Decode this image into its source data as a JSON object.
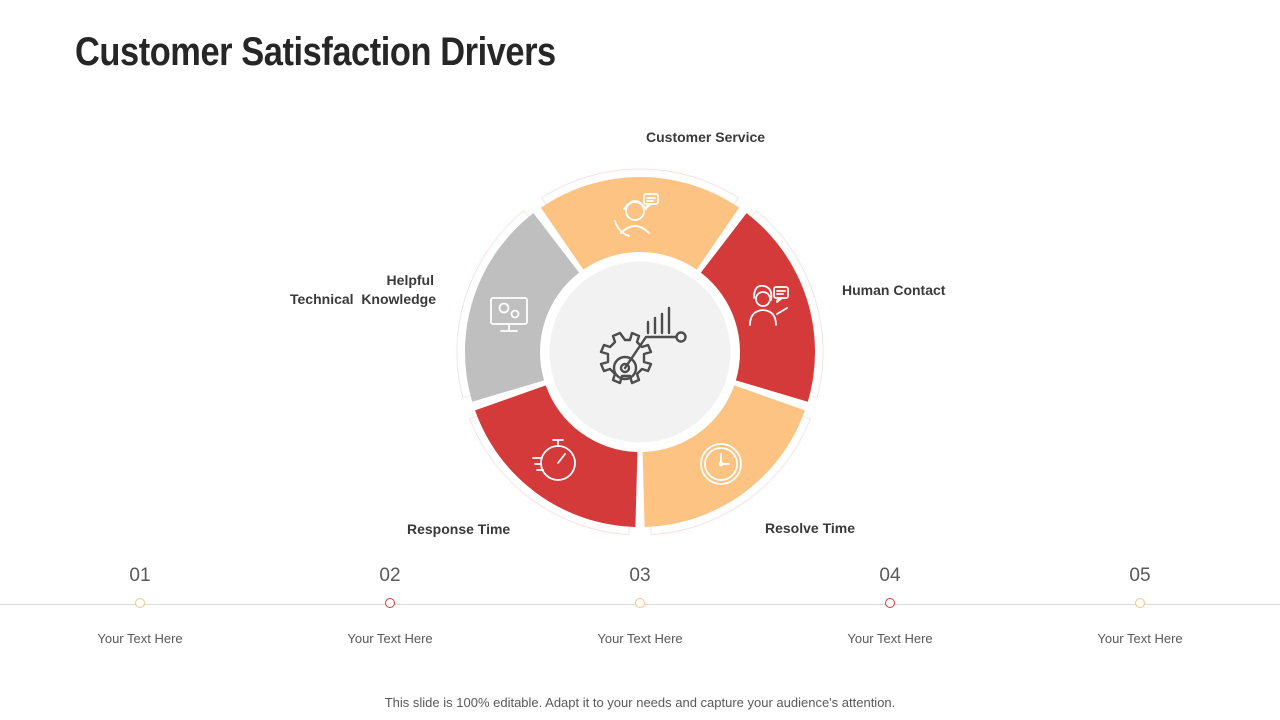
{
  "title": "Customer Satisfaction Drivers",
  "colors": {
    "peach": "#FDC383",
    "red": "#D43A3A",
    "gray": "#BFBFBF",
    "center": "#F2F2F2",
    "icon_dark": "#4D4D4D"
  },
  "segments": [
    {
      "label": "Customer Service",
      "color": "peach",
      "icon": "customer-service-agent-icon"
    },
    {
      "label": "Human Contact",
      "color": "red",
      "icon": "human-contact-icon"
    },
    {
      "label": "Resolve Time",
      "color": "peach",
      "icon": "clock-icon"
    },
    {
      "label": "Response Time",
      "color": "red",
      "icon": "stopwatch-icon"
    },
    {
      "label_line1": "Helpful",
      "label_line2": "Technical  Knowledge",
      "color": "gray",
      "icon": "computer-settings-icon"
    }
  ],
  "center_icon": "gear-chart-icon",
  "steps": [
    {
      "num": "01",
      "text": "Your Text Here",
      "color": "peach"
    },
    {
      "num": "02",
      "text": "Your Text Here",
      "color": "red"
    },
    {
      "num": "03",
      "text": "Your Text Here",
      "color": "peach"
    },
    {
      "num": "04",
      "text": "Your Text Here",
      "color": "red"
    },
    {
      "num": "05",
      "text": "Your Text Here",
      "color": "peach"
    }
  ],
  "footer": "This slide is 100% editable. Adapt it to your needs and capture your audience's attention."
}
